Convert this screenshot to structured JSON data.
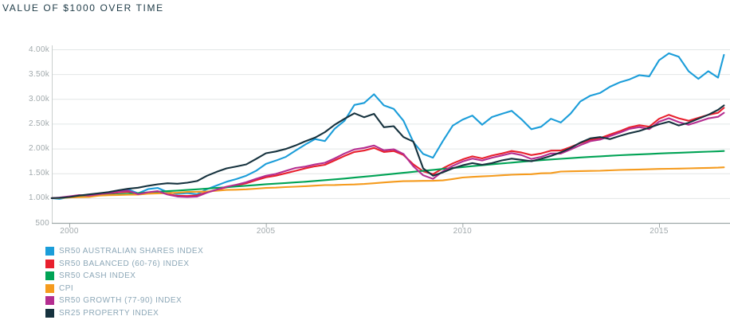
{
  "title": "VALUE OF $1000 OVER TIME",
  "chart_data": {
    "type": "line",
    "title": "VALUE OF $1000 OVER TIME",
    "xlabel": "",
    "ylabel": "",
    "xlim": [
      1999.55,
      2016.8
    ],
    "ylim": [
      500,
      4000
    ],
    "grid": "horizontal",
    "legend_position": "bottom-left",
    "x_ticks": [
      2000,
      2005,
      2010,
      2015
    ],
    "x_tick_labels": [
      "2000",
      "2005",
      "2010",
      "2015"
    ],
    "y_ticks": [
      4000,
      3500,
      3000,
      2500,
      2000,
      1500,
      1000,
      500
    ],
    "y_tick_labels": [
      "4.00k",
      "3.50k",
      "3.00k",
      "2.50k",
      "2.00k",
      "1.50k",
      "1.00k",
      "500"
    ],
    "x": [
      1999.55,
      1999.75,
      2000,
      2000.25,
      2000.5,
      2000.75,
      2001,
      2001.25,
      2001.5,
      2001.75,
      2002,
      2002.25,
      2002.5,
      2002.75,
      2003,
      2003.25,
      2003.5,
      2003.75,
      2004,
      2004.25,
      2004.5,
      2004.75,
      2005,
      2005.25,
      2005.5,
      2005.75,
      2006,
      2006.25,
      2006.5,
      2006.75,
      2007,
      2007.25,
      2007.5,
      2007.75,
      2008,
      2008.25,
      2008.5,
      2008.75,
      2009,
      2009.25,
      2009.5,
      2009.75,
      2010,
      2010.25,
      2010.5,
      2010.75,
      2011,
      2011.25,
      2011.5,
      2011.75,
      2012,
      2012.25,
      2012.5,
      2012.75,
      2013,
      2013.25,
      2013.5,
      2013.75,
      2014,
      2014.25,
      2014.5,
      2014.75,
      2015,
      2015.25,
      2015.5,
      2015.75,
      2016,
      2016.25,
      2016.5,
      2016.65
    ],
    "series": [
      {
        "name": "SR50 AUSTRALIAN SHARES INDEX",
        "color": "#1b9dd9",
        "values": [
          1000,
          985,
          1020,
          1048,
          1035,
          1072,
          1110,
          1148,
          1175,
          1098,
          1180,
          1205,
          1122,
          1085,
          1100,
          1078,
          1180,
          1255,
          1330,
          1385,
          1452,
          1550,
          1690,
          1755,
          1830,
          1958,
          2080,
          2190,
          2150,
          2400,
          2560,
          2880,
          2920,
          3095,
          2870,
          2800,
          2560,
          2130,
          1890,
          1815,
          2150,
          2460,
          2580,
          2665,
          2480,
          2635,
          2700,
          2760,
          2590,
          2390,
          2440,
          2600,
          2525,
          2705,
          2950,
          3065,
          3120,
          3245,
          3335,
          3395,
          3480,
          3455,
          3780,
          3920,
          3850,
          3560,
          3405,
          3560,
          3430,
          3890
        ]
      },
      {
        "name": "SR50 BALANCED (60-76) INDEX",
        "color": "#e8202e",
        "values": [
          1000,
          1008,
          1030,
          1055,
          1048,
          1072,
          1090,
          1115,
          1130,
          1078,
          1110,
          1128,
          1078,
          1048,
          1042,
          1052,
          1120,
          1170,
          1220,
          1258,
          1300,
          1360,
          1420,
          1452,
          1500,
          1550,
          1600,
          1642,
          1672,
          1760,
          1850,
          1930,
          1960,
          2012,
          1930,
          1950,
          1870,
          1680,
          1540,
          1482,
          1600,
          1700,
          1780,
          1842,
          1800,
          1858,
          1900,
          1950,
          1920,
          1868,
          1900,
          1958,
          1960,
          2030,
          2110,
          2180,
          2210,
          2282,
          2350,
          2428,
          2470,
          2440,
          2600,
          2680,
          2610,
          2560,
          2620,
          2680,
          2720,
          2820
        ]
      },
      {
        "name": "SR50 CASH INDEX",
        "color": "#00a355",
        "values": [
          1000,
          1003,
          1015,
          1028,
          1040,
          1052,
          1065,
          1078,
          1090,
          1102,
          1115,
          1128,
          1140,
          1152,
          1165,
          1178,
          1192,
          1206,
          1220,
          1235,
          1250,
          1265,
          1280,
          1292,
          1305,
          1318,
          1330,
          1346,
          1362,
          1378,
          1395,
          1414,
          1432,
          1451,
          1470,
          1490,
          1510,
          1530,
          1550,
          1569,
          1588,
          1606,
          1625,
          1644,
          1663,
          1681,
          1700,
          1716,
          1733,
          1749,
          1765,
          1779,
          1793,
          1806,
          1820,
          1831,
          1842,
          1854,
          1865,
          1874,
          1883,
          1891,
          1900,
          1908,
          1915,
          1923,
          1930,
          1937,
          1944,
          1950
        ]
      },
      {
        "name": "CPI",
        "color": "#f59b1e",
        "values": [
          1000,
          1002,
          1012,
          1018,
          1022,
          1050,
          1058,
          1062,
          1068,
          1072,
          1090,
          1095,
          1100,
          1108,
          1125,
          1128,
          1132,
          1148,
          1165,
          1170,
          1178,
          1190,
          1205,
          1212,
          1222,
          1230,
          1240,
          1252,
          1262,
          1265,
          1270,
          1275,
          1285,
          1300,
          1315,
          1330,
          1342,
          1345,
          1348,
          1350,
          1358,
          1385,
          1415,
          1428,
          1438,
          1448,
          1460,
          1472,
          1478,
          1482,
          1500,
          1505,
          1535,
          1540,
          1545,
          1548,
          1552,
          1560,
          1568,
          1572,
          1578,
          1582,
          1588,
          1592,
          1595,
          1600,
          1605,
          1610,
          1615,
          1620
        ]
      },
      {
        "name": "SR50 GROWTH (77-90) INDEX",
        "color": "#b42d90",
        "values": [
          1000,
          1010,
          1035,
          1062,
          1050,
          1080,
          1100,
          1130,
          1148,
          1078,
          1118,
          1140,
          1072,
          1032,
          1022,
          1032,
          1110,
          1170,
          1230,
          1270,
          1320,
          1390,
          1450,
          1488,
          1548,
          1608,
          1635,
          1680,
          1712,
          1800,
          1900,
          1982,
          2012,
          2060,
          1965,
          1985,
          1890,
          1640,
          1460,
          1388,
          1540,
          1650,
          1738,
          1798,
          1758,
          1815,
          1858,
          1908,
          1868,
          1790,
          1832,
          1900,
          1898,
          1980,
          2068,
          2148,
          2180,
          2250,
          2320,
          2398,
          2432,
          2392,
          2540,
          2612,
          2532,
          2480,
          2540,
          2608,
          2640,
          2720
        ]
      },
      {
        "name": "SR25 PROPERTY INDEX",
        "color": "#16323e",
        "values": [
          1000,
          1005,
          1022,
          1050,
          1075,
          1098,
          1122,
          1158,
          1188,
          1210,
          1248,
          1278,
          1300,
          1290,
          1310,
          1345,
          1450,
          1530,
          1600,
          1638,
          1680,
          1790,
          1905,
          1940,
          1990,
          2060,
          2145,
          2220,
          2330,
          2480,
          2600,
          2710,
          2630,
          2700,
          2430,
          2450,
          2230,
          2140,
          1600,
          1452,
          1520,
          1600,
          1660,
          1705,
          1672,
          1705,
          1760,
          1795,
          1772,
          1742,
          1792,
          1850,
          1922,
          2010,
          2120,
          2205,
          2230,
          2190,
          2255,
          2310,
          2355,
          2420,
          2490,
          2540,
          2465,
          2520,
          2600,
          2680,
          2780,
          2870
        ]
      }
    ]
  }
}
